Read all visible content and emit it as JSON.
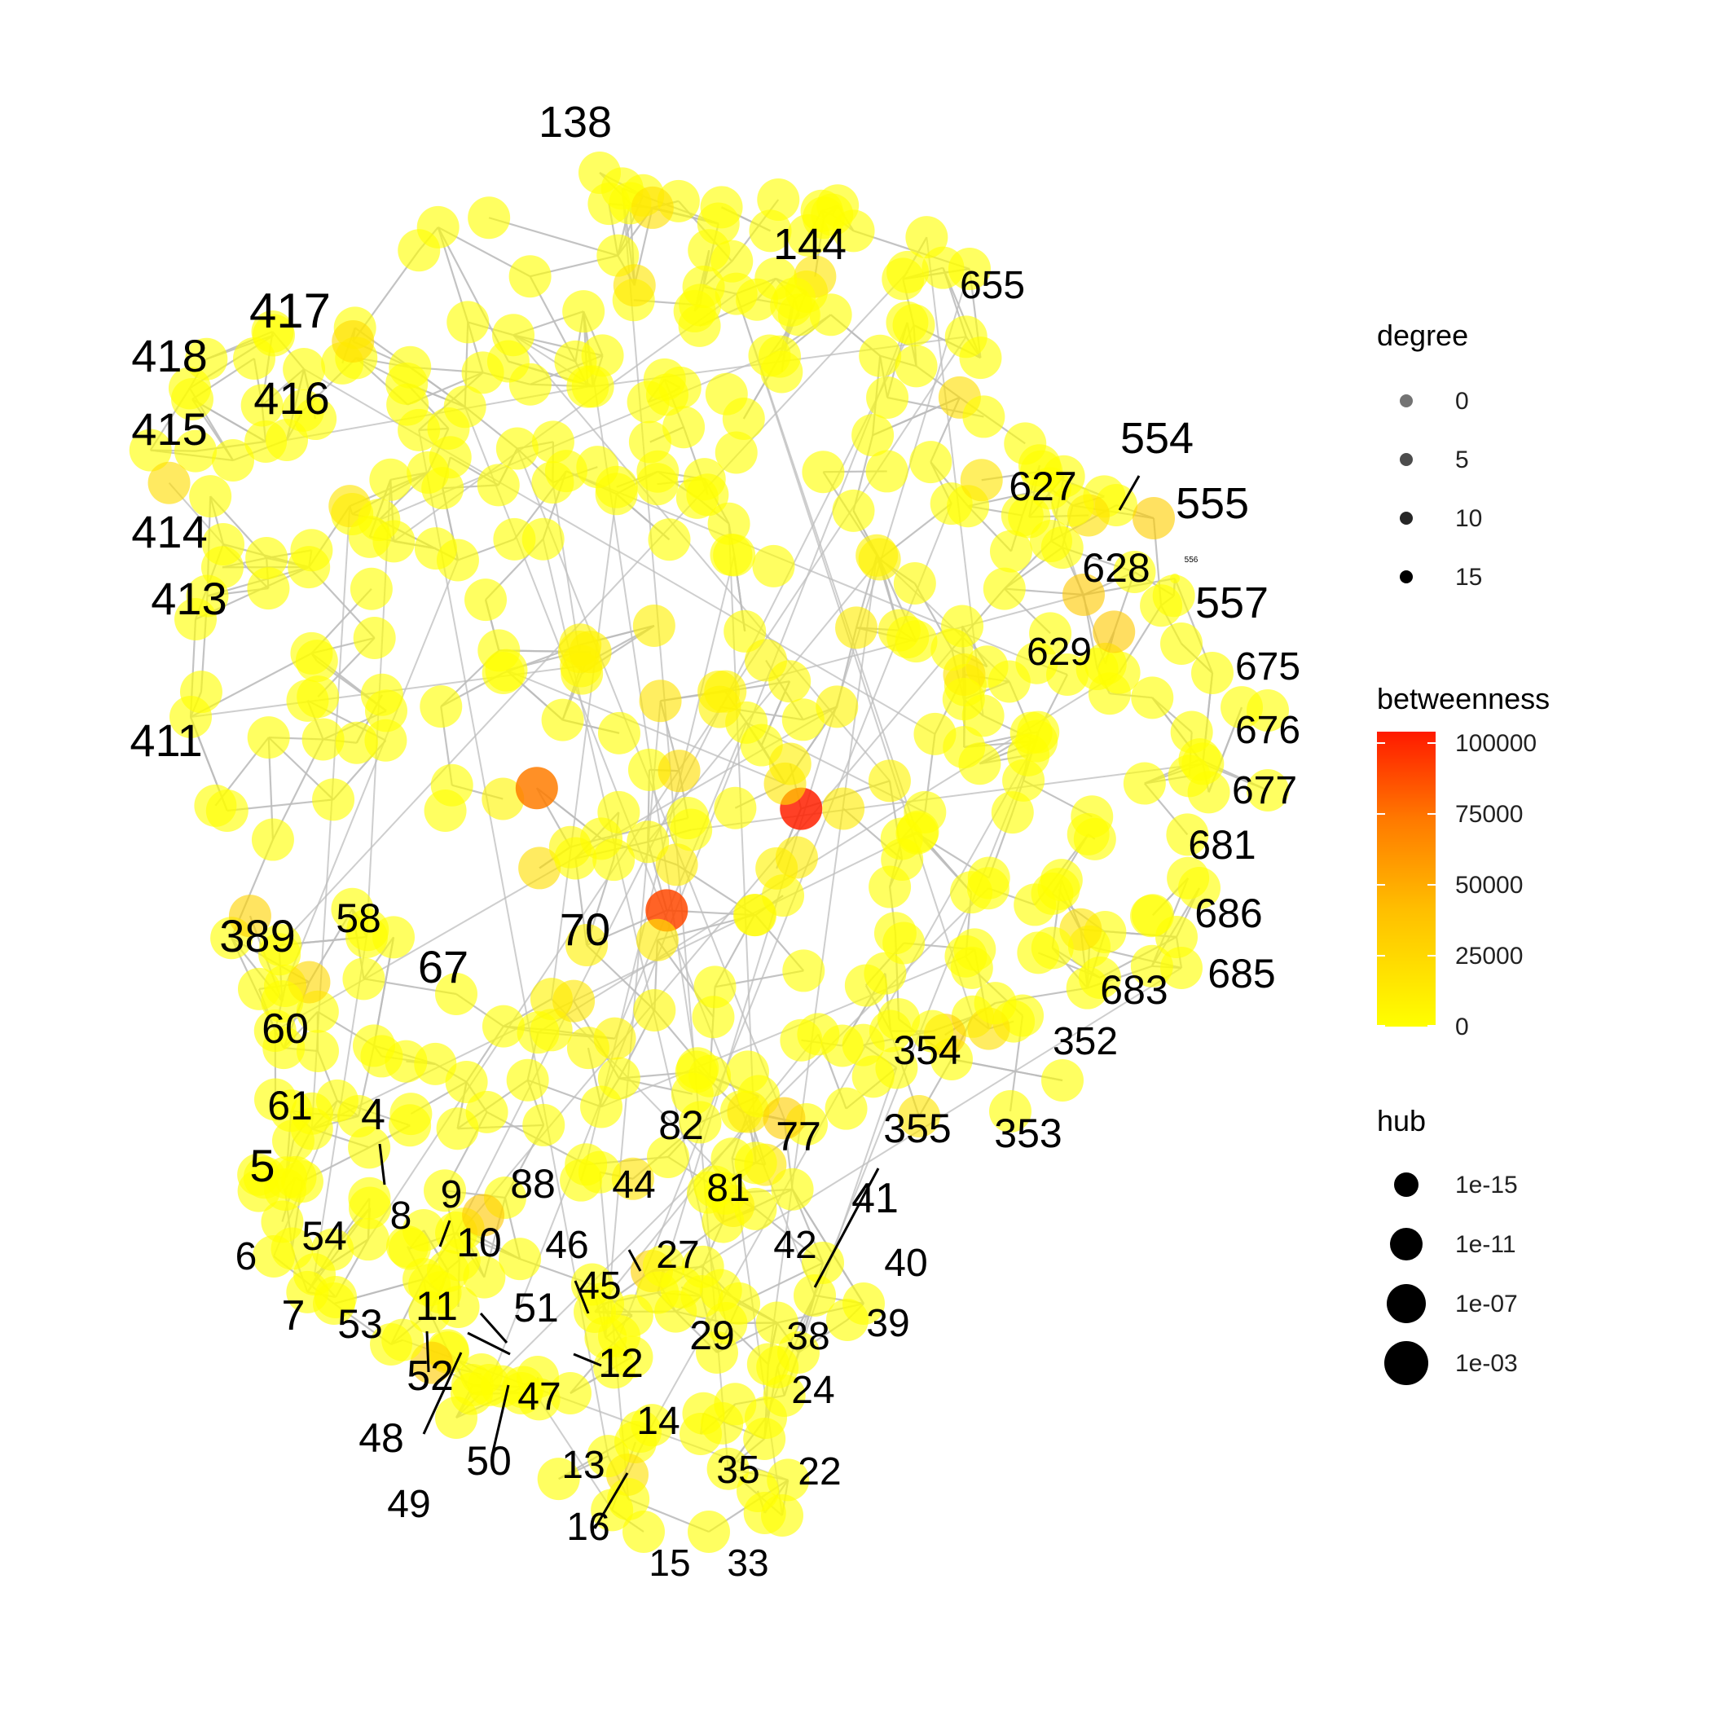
{
  "legend": {
    "degree": {
      "title": "degree",
      "items": [
        "0",
        "5",
        "10",
        "15"
      ],
      "alphas": [
        0.55,
        0.7,
        0.85,
        1.0
      ]
    },
    "betweenness": {
      "title": "betweenness",
      "ticks": [
        "100000",
        "75000",
        "50000",
        "25000",
        "0"
      ],
      "colors": [
        "#ff0000",
        "#ff6a00",
        "#ffa500",
        "#ffd200",
        "#ffff00"
      ]
    },
    "hub": {
      "title": "hub",
      "items": [
        "1e-15",
        "1e-11",
        "1e-07",
        "1e-03"
      ]
    }
  },
  "colors": {
    "edge": "#bdbdbd",
    "node_low": "#ffff00",
    "node_mid": "#ffa500",
    "node_high": "#ff2000",
    "label": "#000000"
  },
  "node_labels": [
    "138",
    "144",
    "655",
    "417",
    "418",
    "416",
    "415",
    "414",
    "413",
    "411",
    "554",
    "555",
    "556",
    "627",
    "628",
    "557",
    "629",
    "675",
    "676",
    "677",
    "681",
    "686",
    "685",
    "683",
    "352",
    "354",
    "353",
    "355",
    "389",
    "58",
    "70",
    "67",
    "60",
    "61",
    "4",
    "5",
    "54",
    "8",
    "9",
    "88",
    "10",
    "6",
    "7",
    "53",
    "11",
    "52",
    "48",
    "49",
    "50",
    "47",
    "51",
    "12",
    "46",
    "45",
    "44",
    "27",
    "82",
    "81",
    "77",
    "41",
    "42",
    "40",
    "39",
    "38",
    "29",
    "24",
    "14",
    "13",
    "16",
    "15",
    "33",
    "35",
    "22"
  ]
}
